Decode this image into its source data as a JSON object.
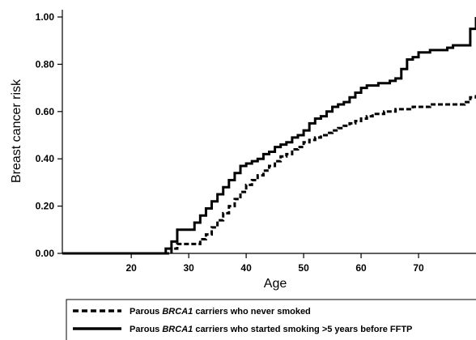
{
  "chart_data": {
    "type": "line",
    "xlabel": "Age",
    "ylabel": "Breast cancer risk",
    "xlim": [
      8,
      80
    ],
    "ylim": [
      0,
      1.0
    ],
    "xticks": [
      20,
      30,
      40,
      50,
      60,
      70
    ],
    "xtick_labels": [
      "20",
      "30",
      "40",
      "50",
      "60",
      "70"
    ],
    "yticks": [
      0,
      0.2,
      0.4,
      0.6,
      0.8,
      1.0
    ],
    "ytick_labels": [
      "0.00",
      "0.20",
      "0.40",
      "0.60",
      "0.80",
      "1.00"
    ],
    "grid": false,
    "legend_position": "bottom",
    "series": [
      {
        "name": "never_smoked",
        "legend_parts": [
          "Parous ",
          "BRCA1",
          " carriers who never smoked"
        ],
        "line_style": "dashed",
        "color": "#000000",
        "x": [
          8,
          27,
          28,
          32,
          33,
          34,
          35,
          36,
          37,
          38,
          39,
          40,
          41,
          42,
          43,
          44,
          45,
          46,
          47,
          48,
          49,
          50,
          51,
          52,
          53,
          54,
          55,
          56,
          57,
          58,
          59,
          60,
          61,
          62,
          63,
          64,
          65,
          66,
          67,
          68,
          69,
          70,
          71,
          72,
          73,
          74,
          75,
          76,
          77,
          78,
          79,
          80
        ],
        "y": [
          0,
          0.02,
          0.04,
          0.06,
          0.08,
          0.11,
          0.14,
          0.17,
          0.2,
          0.23,
          0.26,
          0.29,
          0.31,
          0.33,
          0.35,
          0.37,
          0.39,
          0.41,
          0.42,
          0.44,
          0.45,
          0.47,
          0.48,
          0.49,
          0.5,
          0.51,
          0.52,
          0.53,
          0.54,
          0.55,
          0.56,
          0.57,
          0.58,
          0.59,
          0.59,
          0.6,
          0.6,
          0.61,
          0.61,
          0.61,
          0.62,
          0.62,
          0.62,
          0.63,
          0.63,
          0.63,
          0.63,
          0.63,
          0.63,
          0.64,
          0.66,
          0.67
        ]
      },
      {
        "name": "started_smoking",
        "legend_parts": [
          "Parous ",
          "BRCA1",
          " carriers who started smoking >5 years before FFTP"
        ],
        "line_style": "solid",
        "color": "#000000",
        "x": [
          8,
          26,
          27,
          28,
          30,
          31,
          32,
          33,
          34,
          35,
          36,
          37,
          38,
          39,
          40,
          41,
          42,
          43,
          44,
          45,
          46,
          47,
          48,
          49,
          50,
          51,
          52,
          53,
          54,
          55,
          56,
          57,
          58,
          59,
          60,
          61,
          62,
          63,
          64,
          65,
          66,
          67,
          68,
          69,
          70,
          71,
          72,
          73,
          74,
          75,
          76,
          77,
          78,
          79,
          80
        ],
        "y": [
          0,
          0.02,
          0.05,
          0.1,
          0.1,
          0.13,
          0.16,
          0.19,
          0.22,
          0.25,
          0.28,
          0.31,
          0.34,
          0.37,
          0.38,
          0.39,
          0.4,
          0.42,
          0.43,
          0.45,
          0.46,
          0.47,
          0.49,
          0.5,
          0.52,
          0.55,
          0.57,
          0.58,
          0.6,
          0.62,
          0.63,
          0.64,
          0.66,
          0.68,
          0.7,
          0.71,
          0.71,
          0.72,
          0.72,
          0.73,
          0.74,
          0.78,
          0.82,
          0.83,
          0.85,
          0.85,
          0.86,
          0.86,
          0.86,
          0.87,
          0.88,
          0.88,
          0.88,
          0.95,
          1.0
        ]
      }
    ]
  }
}
